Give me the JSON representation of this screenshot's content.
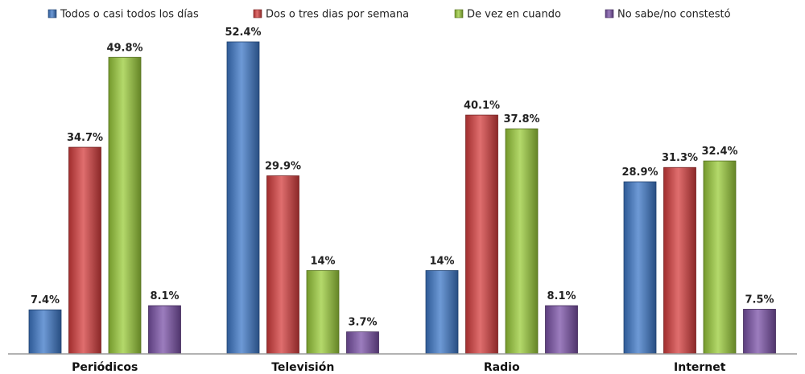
{
  "chart_data": {
    "type": "bar",
    "categories": [
      "Periódicos",
      "Televisión",
      "Radio",
      "Internet"
    ],
    "series": [
      {
        "name": "Todos o casi todos los días",
        "color": "#3d78c8",
        "values": [
          7.4,
          52.4,
          14,
          28.9
        ],
        "labels": [
          "7.4%",
          "52.4%",
          "14%",
          "28.9%"
        ]
      },
      {
        "name": "Dos o tres dias por semana",
        "color": "#d63d3d",
        "values": [
          34.7,
          29.9,
          40.1,
          31.3
        ],
        "labels": [
          "34.7%",
          "29.9%",
          "40.1%",
          "31.3%"
        ]
      },
      {
        "name": "De vez en cuando",
        "color": "#9bcc3a",
        "values": [
          49.8,
          14,
          37.8,
          32.4
        ],
        "labels": [
          "49.8%",
          "14%",
          "37.8%",
          "32.4%"
        ]
      },
      {
        "name": "No sabe/no constestó",
        "color": "#7b52a8",
        "values": [
          8.1,
          3.7,
          8.1,
          7.5
        ],
        "labels": [
          "8.1%",
          "3.7%",
          "8.1%",
          "7.5%"
        ]
      }
    ],
    "ylim": [
      0,
      52.4
    ],
    "grid": false,
    "legend_position": "top"
  }
}
